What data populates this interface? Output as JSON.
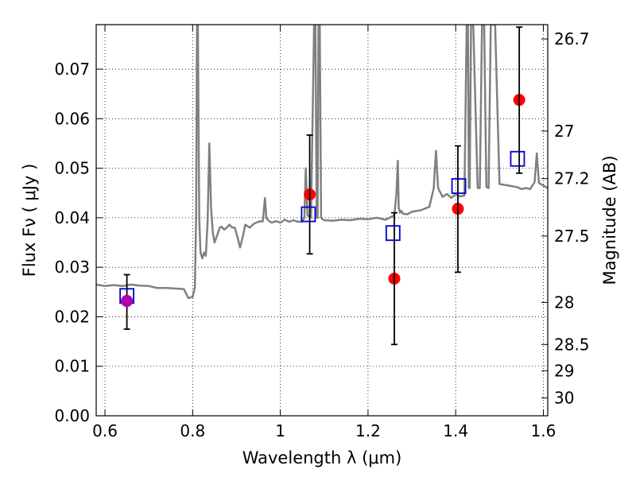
{
  "chart_data": {
    "type": "scatter",
    "title": "",
    "xlabel": "Wavelength  λ (μm)",
    "ylabel": "Flux  Fν  ( μJy )",
    "ylabel_right": "Magnitude (AB)",
    "xlim": [
      0.58,
      1.61
    ],
    "ylim": [
      0.0,
      0.079
    ],
    "grid": true,
    "x_ticks": [
      0.6,
      0.8,
      1.0,
      1.2,
      1.4,
      1.6
    ],
    "x_tick_labels": [
      "0.6",
      "0.8",
      "1",
      "1.2",
      "1.4",
      "1.6"
    ],
    "y_ticks": [
      0.0,
      0.01,
      0.02,
      0.03,
      0.04,
      0.05,
      0.06,
      0.07
    ],
    "y_tick_labels": [
      "0.00",
      "0.01",
      "0.02",
      "0.03",
      "0.04",
      "0.05",
      "0.06",
      "0.07"
    ],
    "mag_ticks": [
      {
        "flux": 0.0761,
        "label": "26.7"
      },
      {
        "flux": 0.0575,
        "label": "27"
      },
      {
        "flux": 0.0479,
        "label": "27.2"
      },
      {
        "flux": 0.0363,
        "label": "27.5"
      },
      {
        "flux": 0.0229,
        "label": "28"
      },
      {
        "flux": 0.0144,
        "label": "28.5"
      },
      {
        "flux": 0.0091,
        "label": "29"
      },
      {
        "flux": 0.0036,
        "label": "30"
      }
    ],
    "series": [
      {
        "kind": "line",
        "color": "#808080",
        "x": [
          0.58,
          0.6,
          0.62,
          0.64,
          0.66,
          0.68,
          0.7,
          0.72,
          0.74,
          0.76,
          0.78,
          0.79,
          0.8,
          0.805,
          0.808,
          0.81,
          0.812,
          0.815,
          0.818,
          0.822,
          0.826,
          0.83,
          0.834,
          0.838,
          0.842,
          0.846,
          0.85,
          0.854,
          0.858,
          0.862,
          0.866,
          0.872,
          0.878,
          0.884,
          0.89,
          0.896,
          0.902,
          0.908,
          0.914,
          0.92,
          0.93,
          0.94,
          0.95,
          0.96,
          0.965,
          0.968,
          0.972,
          0.98,
          0.99,
          1.0,
          1.01,
          1.02,
          1.03,
          1.04,
          1.05,
          1.055,
          1.058,
          1.062,
          1.07,
          1.077,
          1.08,
          1.083,
          1.085,
          1.087,
          1.09,
          1.093,
          1.095,
          1.1,
          1.12,
          1.14,
          1.16,
          1.18,
          1.2,
          1.22,
          1.24,
          1.26,
          1.265,
          1.268,
          1.27,
          1.273,
          1.276,
          1.28,
          1.29,
          1.3,
          1.32,
          1.34,
          1.35,
          1.355,
          1.36,
          1.37,
          1.38,
          1.39,
          1.4,
          1.405,
          1.41,
          1.42,
          1.425,
          1.428,
          1.43,
          1.432,
          1.435,
          1.44,
          1.45,
          1.455,
          1.46,
          1.465,
          1.47,
          1.475,
          1.48,
          1.49,
          1.5,
          1.52,
          1.54,
          1.55,
          1.56,
          1.57,
          1.58,
          1.585,
          1.59,
          1.6,
          1.61
        ],
        "y": [
          0.0265,
          0.0262,
          0.0264,
          0.0262,
          0.0265,
          0.0263,
          0.0262,
          0.0258,
          0.0258,
          0.0257,
          0.0256,
          0.0238,
          0.024,
          0.026,
          0.04,
          0.079,
          0.079,
          0.04,
          0.033,
          0.0318,
          0.033,
          0.0323,
          0.039,
          0.055,
          0.042,
          0.037,
          0.035,
          0.036,
          0.037,
          0.038,
          0.0382,
          0.0376,
          0.038,
          0.0386,
          0.038,
          0.038,
          0.0362,
          0.034,
          0.036,
          0.0386,
          0.038,
          0.0388,
          0.0392,
          0.0393,
          0.044,
          0.04,
          0.0395,
          0.039,
          0.0393,
          0.039,
          0.0396,
          0.0392,
          0.0395,
          0.0392,
          0.0392,
          0.04,
          0.05,
          0.0405,
          0.04,
          0.079,
          0.079,
          0.04,
          0.04,
          0.079,
          0.079,
          0.04,
          0.0398,
          0.0395,
          0.0394,
          0.0396,
          0.0395,
          0.0398,
          0.0397,
          0.04,
          0.0396,
          0.0405,
          0.045,
          0.0515,
          0.042,
          0.041,
          0.0414,
          0.0408,
          0.0407,
          0.0412,
          0.0415,
          0.0422,
          0.046,
          0.0535,
          0.046,
          0.0442,
          0.0448,
          0.044,
          0.0448,
          0.0445,
          0.0443,
          0.0445,
          0.079,
          0.079,
          0.046,
          0.046,
          0.079,
          0.079,
          0.046,
          0.046,
          0.079,
          0.079,
          0.0462,
          0.046,
          0.079,
          0.079,
          0.0468,
          0.0465,
          0.0462,
          0.0458,
          0.046,
          0.0458,
          0.0472,
          0.053,
          0.047,
          0.0465,
          0.046
        ]
      },
      {
        "kind": "points",
        "marker": "circle",
        "color": "#ff0000",
        "x": [
          0.65,
          1.067,
          1.26,
          1.405,
          1.545
        ],
        "y": [
          0.0232,
          0.0447,
          0.0277,
          0.0418,
          0.0638
        ]
      },
      {
        "kind": "errorbar",
        "color": "#000000",
        "x": [
          0.65,
          1.067,
          1.26,
          1.405,
          1.545
        ],
        "y_low": [
          0.0175,
          0.0327,
          0.0144,
          0.029,
          0.049
        ],
        "y_high": [
          0.0285,
          0.0567,
          0.041,
          0.0545,
          0.0785
        ]
      },
      {
        "kind": "points",
        "marker": "square-open",
        "color": "#0000cc",
        "x": [
          0.65,
          1.064,
          1.257,
          1.407,
          1.541
        ],
        "y": [
          0.0242,
          0.0407,
          0.0369,
          0.0464,
          0.0519
        ]
      },
      {
        "kind": "points",
        "marker": "circle",
        "color": "#b000b0",
        "x": [
          0.65
        ],
        "y": [
          0.0232
        ]
      }
    ]
  }
}
